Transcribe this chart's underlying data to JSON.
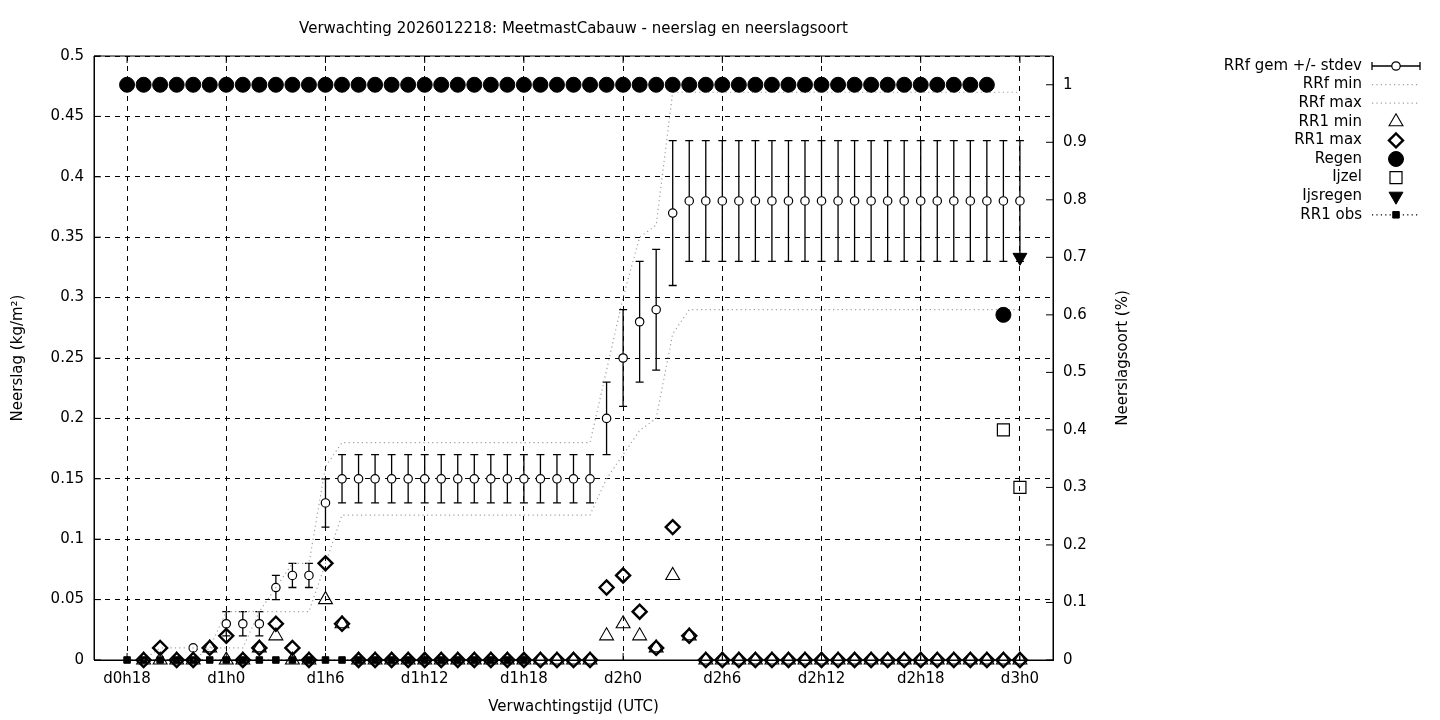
{
  "chart_data": {
    "type": "scatter",
    "title": "Verwachting 2026012218: MeetmastCabauw - neerslag en neerslagsoort",
    "xlabel": "Verwachtingstijd (UTC)",
    "ylabel": "Neerslag (kg/m²)",
    "y2label": "Neerslagsoort (%)",
    "categories": [
      "d0h18",
      null,
      null,
      null,
      null,
      null,
      "d1h0",
      null,
      null,
      null,
      null,
      null,
      "d1h6",
      null,
      null,
      null,
      null,
      null,
      "d1h12",
      null,
      null,
      null,
      null,
      null,
      "d1h18",
      null,
      null,
      null,
      null,
      null,
      "d2h0",
      null,
      null,
      null,
      null,
      null,
      "d2h6",
      null,
      null,
      null,
      null,
      null,
      "d2h12",
      null,
      null,
      null,
      null,
      null,
      "d2h18",
      null,
      null,
      null,
      null,
      null,
      "d3h0"
    ],
    "ylim": [
      0,
      0.5
    ],
    "yticks": [
      0,
      0.05,
      0.1,
      0.15,
      0.2,
      0.25,
      0.3,
      0.35,
      0.4,
      0.45,
      0.5
    ],
    "y2lim": [
      0,
      1.05
    ],
    "y2ticks": [
      0,
      0.1,
      0.2,
      0.3,
      0.4,
      0.5,
      0.6,
      0.7,
      0.8,
      0.9,
      1
    ],
    "grid": true,
    "legend": "top right",
    "series": [
      {
        "name": "RRf gem +/- stdev",
        "type": "scatter",
        "marker": "circle",
        "color": "#000000",
        "values": [
          null,
          null,
          null,
          null,
          0.01,
          null,
          0.03,
          0.03,
          0.03,
          0.06,
          0.07,
          0.07,
          0.13,
          0.15,
          0.15,
          0.15,
          0.15,
          0.15,
          0.15,
          0.15,
          0.15,
          0.15,
          0.15,
          0.15,
          0.15,
          0.15,
          0.15,
          0.15,
          0.15,
          0.2,
          0.25,
          0.28,
          0.29,
          0.37,
          0.38,
          0.38,
          0.38,
          0.38,
          0.38,
          0.38,
          0.38,
          0.38,
          0.38,
          0.38,
          0.38,
          0.38,
          0.38,
          0.38,
          0.38,
          0.38,
          0.38,
          0.38,
          0.38,
          0.38,
          0.38
        ],
        "errors": [
          null,
          null,
          null,
          null,
          null,
          null,
          0.01,
          0.01,
          0.01,
          0.01,
          0.01,
          0.01,
          0.02,
          0.02,
          0.02,
          0.02,
          0.02,
          0.02,
          0.02,
          0.02,
          0.02,
          0.02,
          0.02,
          0.02,
          0.02,
          0.02,
          0.02,
          0.02,
          0.02,
          0.03,
          0.04,
          0.05,
          0.05,
          0.06,
          0.05,
          0.05,
          0.05,
          0.05,
          0.05,
          0.05,
          0.05,
          0.05,
          0.05,
          0.05,
          0.05,
          0.05,
          0.05,
          0.05,
          0.05,
          0.05,
          0.05,
          0.05,
          0.05,
          0.05,
          0.05
        ]
      },
      {
        "name": "RRf min",
        "type": "line",
        "marker": "none",
        "line_style": "dotted",
        "color": "#a0a0a0",
        "values": [
          null,
          null,
          null,
          null,
          0,
          0.01,
          0.01,
          0.01,
          0.04,
          0.04,
          0.04,
          0.04,
          0.08,
          0.12,
          0.12,
          0.12,
          0.12,
          0.12,
          0.12,
          0.12,
          0.12,
          0.12,
          0.12,
          0.12,
          0.12,
          0.12,
          0.12,
          0.12,
          0.12,
          0.15,
          0.17,
          0.19,
          0.2,
          0.27,
          0.29,
          0.29,
          0.29,
          0.29,
          0.29,
          0.29,
          0.29,
          0.29,
          0.29,
          0.29,
          0.29,
          0.29,
          0.29,
          0.29,
          0.29,
          0.29,
          0.29,
          0.29,
          0.29,
          0.29,
          0.29
        ]
      },
      {
        "name": "RRf max",
        "type": "line",
        "marker": "none",
        "line_style": "dotted",
        "color": "#a0a0a0",
        "values": [
          null,
          0,
          0.01,
          0.01,
          0.01,
          0.01,
          0.04,
          0.04,
          0.04,
          0.06,
          0.08,
          0.08,
          0.16,
          0.18,
          0.18,
          0.18,
          0.18,
          0.18,
          0.18,
          0.18,
          0.18,
          0.18,
          0.18,
          0.18,
          0.18,
          0.18,
          0.18,
          0.18,
          0.18,
          0.24,
          0.3,
          0.35,
          0.36,
          0.47,
          0.47,
          0.47,
          0.47,
          0.47,
          0.47,
          0.47,
          0.47,
          0.47,
          0.47,
          0.47,
          0.47,
          0.47,
          0.47,
          0.47,
          0.47,
          0.47,
          0.47,
          0.47,
          0.47,
          0.47,
          0.47
        ]
      },
      {
        "name": "RR1 min",
        "type": "scatter",
        "marker": "triangle",
        "color": "#000000",
        "values": [
          null,
          0,
          0,
          0,
          0,
          0.01,
          0,
          0,
          0.01,
          0.02,
          0,
          0,
          0.05,
          0.03,
          0,
          0,
          0,
          0,
          0,
          0,
          0,
          0,
          0,
          0,
          0,
          0,
          0,
          0,
          0,
          0.02,
          0.03,
          0.02,
          0.01,
          0.07,
          0.02,
          0,
          0,
          0,
          0,
          0,
          0,
          0,
          0,
          0,
          0,
          0,
          0,
          0,
          0,
          0,
          0,
          0,
          0,
          0,
          0
        ]
      },
      {
        "name": "RR1 max",
        "type": "scatter",
        "marker": "diamond",
        "color": "#000000",
        "values": [
          null,
          0,
          0.01,
          0,
          0,
          0.01,
          0.02,
          0,
          0.01,
          0.03,
          0.01,
          0,
          0.08,
          0.03,
          0,
          0,
          0,
          0,
          0,
          0,
          0,
          0,
          0,
          0,
          0,
          0,
          0,
          0,
          0,
          0.06,
          0.07,
          0.04,
          0.01,
          0.11,
          0.02,
          0,
          0,
          0,
          0,
          0,
          0,
          0,
          0,
          0,
          0,
          0,
          0,
          0,
          0,
          0,
          0,
          0,
          0,
          0,
          0
        ]
      },
      {
        "name": "Regen",
        "type": "scatter",
        "marker": "circle",
        "axis": "y2",
        "color": "#000000",
        "values": [
          1,
          1,
          1,
          1,
          1,
          1,
          1,
          1,
          1,
          1,
          1,
          1,
          1,
          1,
          1,
          1,
          1,
          1,
          1,
          1,
          1,
          1,
          1,
          1,
          1,
          1,
          1,
          1,
          1,
          1,
          1,
          1,
          1,
          1,
          1,
          1,
          1,
          1,
          1,
          1,
          1,
          1,
          1,
          1,
          1,
          1,
          1,
          1,
          1,
          1,
          1,
          1,
          1,
          0.6,
          null
        ]
      },
      {
        "name": "Ijzel",
        "type": "scatter",
        "marker": "square",
        "axis": "y2",
        "color": "#000000",
        "values": [
          null,
          null,
          null,
          null,
          null,
          null,
          null,
          null,
          null,
          null,
          null,
          null,
          null,
          null,
          null,
          null,
          null,
          null,
          null,
          null,
          null,
          null,
          null,
          null,
          null,
          null,
          null,
          null,
          null,
          null,
          null,
          null,
          null,
          null,
          null,
          null,
          null,
          null,
          null,
          null,
          null,
          null,
          null,
          null,
          null,
          null,
          null,
          null,
          null,
          null,
          null,
          null,
          null,
          0.4,
          0.3
        ]
      },
      {
        "name": "Ijsregen",
        "type": "scatter",
        "marker": "triangle",
        "axis": "y2",
        "color": "#000000",
        "values": [
          null,
          null,
          null,
          null,
          null,
          null,
          null,
          null,
          null,
          null,
          null,
          null,
          null,
          null,
          null,
          null,
          null,
          null,
          null,
          null,
          null,
          null,
          null,
          null,
          null,
          null,
          null,
          null,
          null,
          null,
          null,
          null,
          null,
          null,
          null,
          null,
          null,
          null,
          null,
          null,
          null,
          null,
          null,
          null,
          null,
          null,
          null,
          null,
          null,
          null,
          null,
          null,
          null,
          null,
          0.7
        ]
      },
      {
        "name": "RR1 obs",
        "type": "line",
        "marker": "square",
        "line_style": "dotted",
        "color": "#000000",
        "values": [
          0,
          0,
          0,
          0,
          0,
          0,
          0,
          0,
          0,
          0,
          0,
          0,
          0,
          0,
          0,
          0,
          0,
          0,
          0,
          0,
          0,
          0,
          0,
          0,
          0,
          null,
          null,
          null,
          null,
          null,
          null,
          null,
          null,
          null,
          null,
          null,
          null,
          null,
          null,
          null,
          null,
          null,
          null,
          null,
          null,
          null,
          null,
          null,
          null,
          null,
          null,
          null,
          null,
          null,
          null
        ]
      }
    ]
  }
}
